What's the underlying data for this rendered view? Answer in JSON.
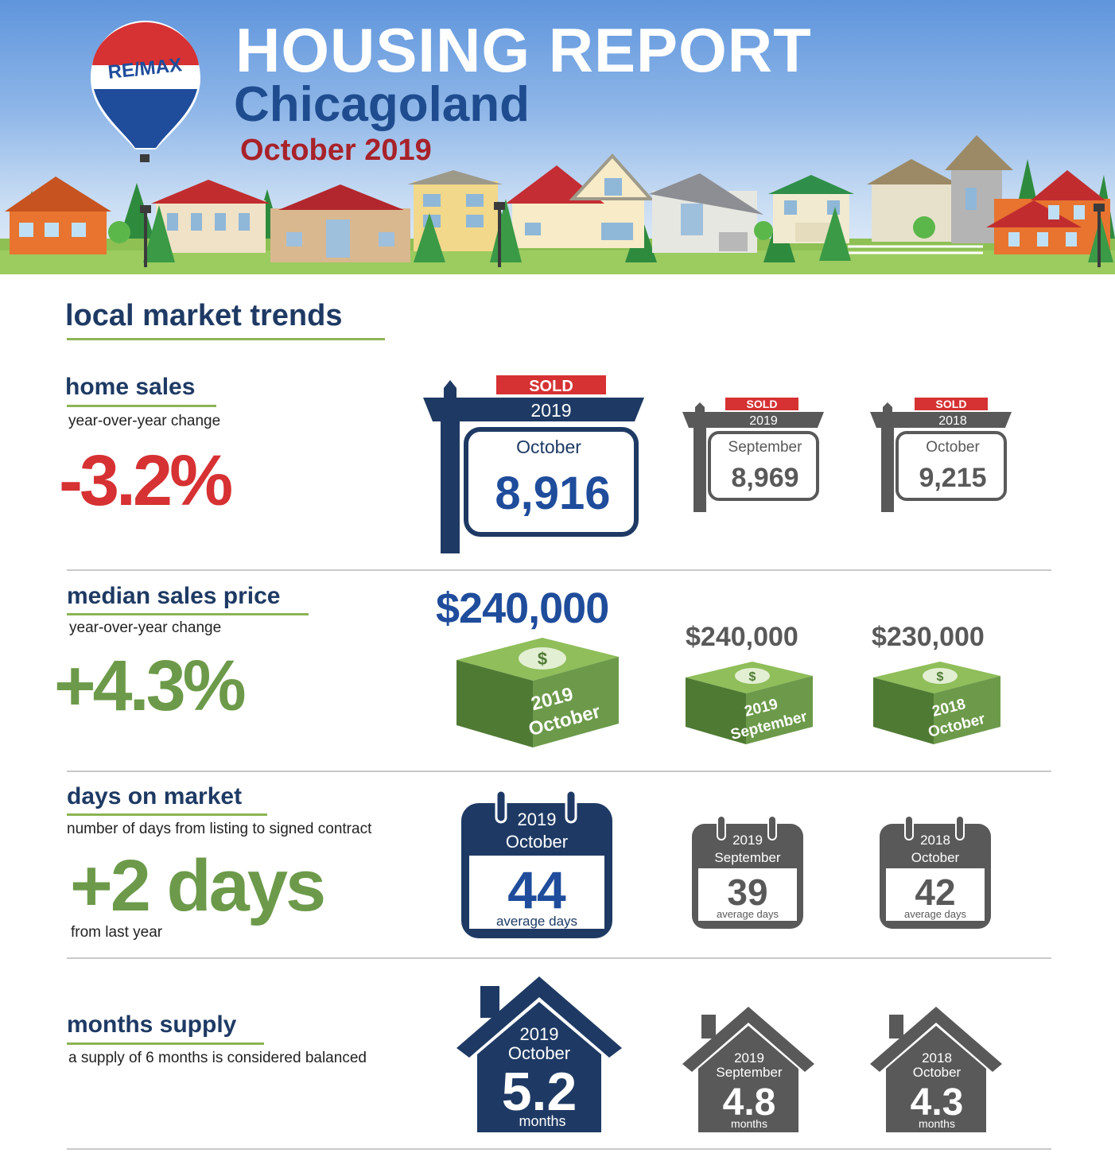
{
  "header": {
    "title": "HOUSING REPORT",
    "region": "Chicagoland",
    "period": "October 2019",
    "brand": "RE/MAX"
  },
  "colors": {
    "navy": "#1e3a64",
    "green": "#6c9a4a",
    "red": "#d63133",
    "gray": "#595959"
  },
  "intro": {
    "title": "local market trends"
  },
  "home_sales": {
    "title": "home sales",
    "subtitle": "year-over-year change",
    "change": "-3.2%",
    "signs": [
      {
        "badge": "SOLD",
        "year": "2019",
        "month": "October",
        "value": "8,916"
      },
      {
        "badge": "SOLD",
        "year": "2019",
        "month": "September",
        "value": "8,969"
      },
      {
        "badge": "SOLD",
        "year": "2018",
        "month": "October",
        "value": "9,215"
      }
    ]
  },
  "median_price": {
    "title": "median sales price",
    "subtitle": "year-over-year change",
    "change": "+4.3%",
    "stacks": [
      {
        "price": "$240,000",
        "year": "2019",
        "month": "October"
      },
      {
        "price": "$240,000",
        "year": "2019",
        "month": "September"
      },
      {
        "price": "$230,000",
        "year": "2018",
        "month": "October"
      }
    ]
  },
  "days_on_market": {
    "title": "days on market",
    "subtitle": "number of days from listing to signed contract",
    "change": "+2 days",
    "note": "from last year",
    "calendars": [
      {
        "year": "2019",
        "month": "October",
        "value": "44",
        "unit": "average days"
      },
      {
        "year": "2019",
        "month": "September",
        "value": "39",
        "unit": "average days"
      },
      {
        "year": "2018",
        "month": "October",
        "value": "42",
        "unit": "average days"
      }
    ]
  },
  "months_supply": {
    "title": "months supply",
    "subtitle": "a supply of 6 months is considered balanced",
    "houses": [
      {
        "year": "2019",
        "month": "October",
        "value": "5.2",
        "unit": "months"
      },
      {
        "year": "2019",
        "month": "September",
        "value": "4.8",
        "unit": "months"
      },
      {
        "year": "2018",
        "month": "October",
        "value": "4.3",
        "unit": "months"
      }
    ]
  }
}
